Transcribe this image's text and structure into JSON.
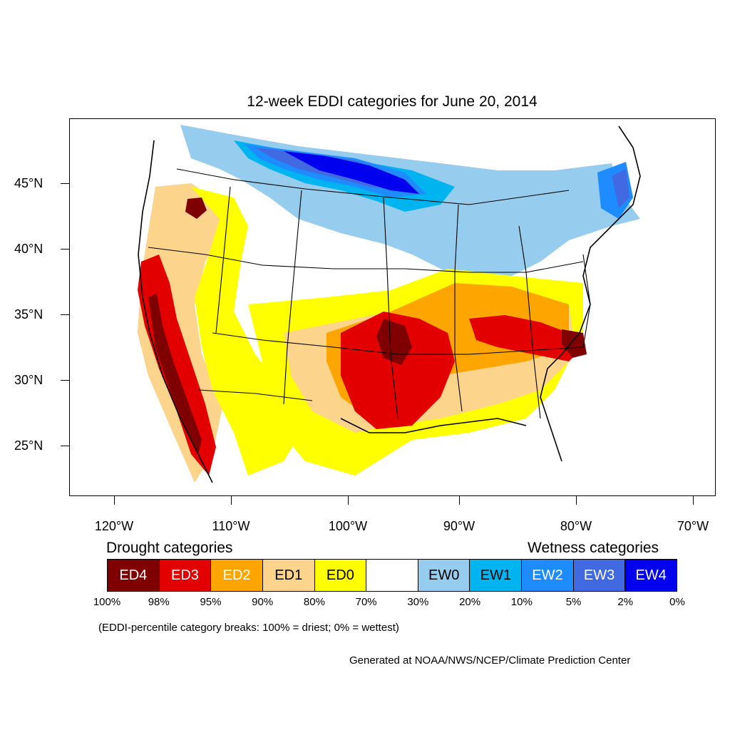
{
  "title": "12-week EDDI categories for June 20, 2014",
  "axes": {
    "lat_labels": [
      "45°N",
      "40°N",
      "35°N",
      "30°N",
      "25°N"
    ],
    "lon_labels": [
      "120°W",
      "110°W",
      "100°W",
      "90°W",
      "80°W",
      "70°W"
    ]
  },
  "legend": {
    "drought_heading": "Drought categories",
    "wetness_heading": "Wetness categories",
    "categories": [
      {
        "label": "ED4",
        "color": "#7f0000",
        "text_color": "#ffffff"
      },
      {
        "label": "ED3",
        "color": "#e30000",
        "text_color": "#ffffff"
      },
      {
        "label": "ED2",
        "color": "#ffa500",
        "text_color": "#ffffff"
      },
      {
        "label": "ED1",
        "color": "#fcd48c",
        "text_color": "#000000"
      },
      {
        "label": "ED0",
        "color": "#ffff00",
        "text_color": "#000000"
      },
      {
        "label": "",
        "color": "#ffffff",
        "text_color": "#000000"
      },
      {
        "label": "EW0",
        "color": "#96cdef",
        "text_color": "#000000"
      },
      {
        "label": "EW1",
        "color": "#00b4f0",
        "text_color": "#000000"
      },
      {
        "label": "EW2",
        "color": "#1e8cff",
        "text_color": "#ffffff"
      },
      {
        "label": "EW3",
        "color": "#4169e1",
        "text_color": "#ffffff"
      },
      {
        "label": "EW4",
        "color": "#0000ee",
        "text_color": "#ffffff"
      }
    ],
    "breaks": [
      "100%",
      "98%",
      "95%",
      "90%",
      "80%",
      "70%",
      "30%",
      "20%",
      "10%",
      "5%",
      "2%",
      "0%"
    ]
  },
  "note": "(EDDI-percentile category breaks: 100% = driest; 0% = wettest)",
  "credit": "Generated at NOAA/NWS/NCEP/Climate Prediction Center",
  "colors": {
    "ED4": "#7f0000",
    "ED3": "#e30000",
    "ED2": "#ffa500",
    "ED1": "#fcd48c",
    "ED0": "#ffff00",
    "EW0": "#96cdef",
    "EW1": "#00b4f0",
    "EW2": "#1e8cff",
    "EW3": "#4169e1",
    "EW4": "#0000ee"
  }
}
